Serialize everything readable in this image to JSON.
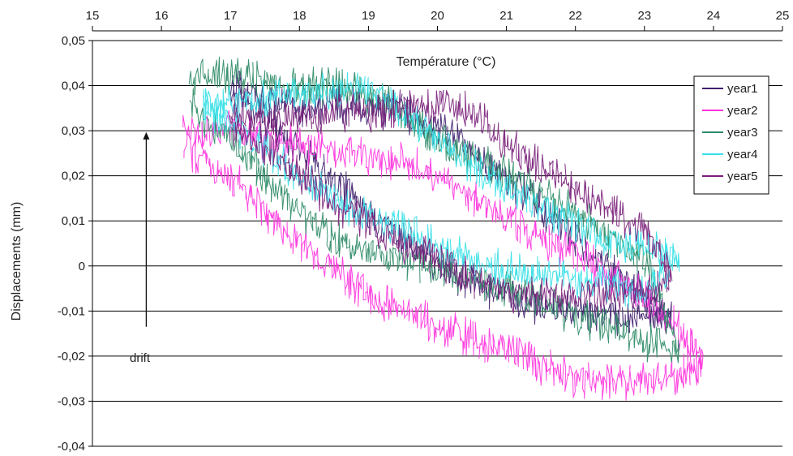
{
  "chart_data": {
    "type": "line",
    "title": "",
    "xlabel": "Température (°C)",
    "ylabel": "Displacements (mm)",
    "xlim": [
      15,
      25
    ],
    "ylim": [
      -0.04,
      0.05
    ],
    "x_ticks": [
      "15",
      "16",
      "17",
      "18",
      "19",
      "20",
      "21",
      "22",
      "23",
      "24",
      "25"
    ],
    "y_ticks": [
      "0,05",
      "0,04",
      "0,03",
      "0,02",
      "0,01",
      "0",
      "-0,01",
      "-0,02",
      "-0,03",
      "-0,04"
    ],
    "y_tick_values": [
      0.05,
      0.04,
      0.03,
      0.02,
      0.01,
      0,
      -0.01,
      -0.02,
      -0.03,
      -0.04
    ],
    "grid": true,
    "legend_position": "top-right",
    "annotation": {
      "text": "drift",
      "arrow_from": [
        15.78,
        -0.0135
      ],
      "arrow_to": [
        15.78,
        0.0295
      ]
    },
    "noise_amplitude": 0.0045,
    "series": [
      {
        "name": "year1",
        "color": "#3f1f6e",
        "x": [
          17.0,
          17.5,
          18.0,
          18.5,
          19.0,
          19.5,
          20.0,
          20.5,
          21.0,
          21.5,
          22.0,
          22.5,
          23.0,
          23.4,
          23.0,
          22.5,
          22.0,
          21.5,
          21.0,
          20.5,
          20.0,
          19.5,
          19.0,
          18.5,
          18.0,
          17.5,
          17.0
        ],
        "y": [
          0.04,
          0.037,
          0.035,
          0.036,
          0.035,
          0.034,
          0.031,
          0.025,
          0.02,
          0.013,
          0.006,
          -0.001,
          -0.006,
          -0.012,
          -0.011,
          -0.011,
          -0.01,
          -0.009,
          -0.007,
          -0.004,
          0.0,
          0.006,
          0.012,
          0.019,
          0.026,
          0.033,
          0.038
        ]
      },
      {
        "name": "year2",
        "color": "#ff33dd",
        "x": [
          16.3,
          17.0,
          17.5,
          18.0,
          18.5,
          19.0,
          19.5,
          20.0,
          20.5,
          21.0,
          21.5,
          22.0,
          22.5,
          23.0,
          23.5,
          23.85,
          23.5,
          23.0,
          22.5,
          22.0,
          21.5,
          21.0,
          20.5,
          20.0,
          19.5,
          19.0,
          18.5,
          18.0,
          17.5,
          17.0,
          16.3
        ],
        "y": [
          0.03,
          0.03,
          0.028,
          0.027,
          0.025,
          0.024,
          0.023,
          0.02,
          0.015,
          0.01,
          0.006,
          0.003,
          -0.002,
          -0.007,
          -0.014,
          -0.022,
          -0.024,
          -0.026,
          -0.026,
          -0.025,
          -0.022,
          -0.019,
          -0.016,
          -0.013,
          -0.01,
          -0.006,
          -0.001,
          0.005,
          0.012,
          0.02,
          0.026
        ]
      },
      {
        "name": "year3",
        "color": "#2e8b67",
        "x": [
          16.4,
          17.0,
          17.5,
          18.0,
          18.5,
          19.0,
          19.5,
          20.0,
          20.5,
          21.0,
          21.5,
          22.0,
          22.5,
          23.0,
          23.5,
          23.0,
          22.5,
          22.0,
          21.5,
          21.0,
          20.5,
          20.0,
          19.5,
          19.0,
          18.5,
          18.0,
          17.5,
          17.0,
          16.4
        ],
        "y": [
          0.042,
          0.042,
          0.041,
          0.04,
          0.04,
          0.038,
          0.034,
          0.028,
          0.024,
          0.02,
          0.016,
          0.012,
          0.006,
          0.002,
          -0.018,
          -0.017,
          -0.014,
          -0.011,
          -0.008,
          -0.005,
          -0.003,
          -0.001,
          0.001,
          0.003,
          0.006,
          0.012,
          0.02,
          0.028,
          0.036
        ]
      },
      {
        "name": "year4",
        "color": "#33e0e6",
        "x": [
          16.6,
          17.0,
          17.5,
          18.0,
          18.5,
          19.0,
          19.5,
          20.0,
          20.5,
          21.0,
          21.5,
          22.0,
          22.5,
          23.0,
          23.5,
          23.0,
          22.5,
          22.0,
          21.5,
          21.0,
          20.5,
          20.0,
          19.5,
          19.0,
          18.5,
          18.0,
          17.5,
          17.0,
          16.6
        ],
        "y": [
          0.035,
          0.032,
          0.026,
          0.02,
          0.015,
          0.011,
          0.008,
          0.004,
          0.001,
          -0.001,
          -0.002,
          -0.003,
          -0.004,
          -0.006,
          0.002,
          0.004,
          0.006,
          0.009,
          0.013,
          0.018,
          0.022,
          0.028,
          0.034,
          0.04,
          0.039,
          0.038,
          0.037,
          0.036,
          0.035
        ]
      },
      {
        "name": "year5",
        "color": "#7a1f7a",
        "x": [
          17.0,
          17.5,
          18.0,
          18.5,
          19.0,
          19.5,
          20.0,
          20.5,
          21.0,
          21.5,
          22.0,
          22.5,
          23.0,
          23.4,
          23.0,
          22.5,
          22.0,
          21.5,
          21.0,
          20.5,
          20.0,
          19.5,
          19.0,
          18.5,
          18.0,
          17.5,
          17.0
        ],
        "y": [
          0.033,
          0.032,
          0.033,
          0.034,
          0.034,
          0.035,
          0.036,
          0.034,
          0.027,
          0.022,
          0.017,
          0.012,
          0.008,
          -0.002,
          -0.006,
          -0.006,
          -0.006,
          -0.007,
          -0.006,
          -0.003,
          0.001,
          0.005,
          0.009,
          0.014,
          0.02,
          0.026,
          0.031
        ]
      }
    ]
  }
}
